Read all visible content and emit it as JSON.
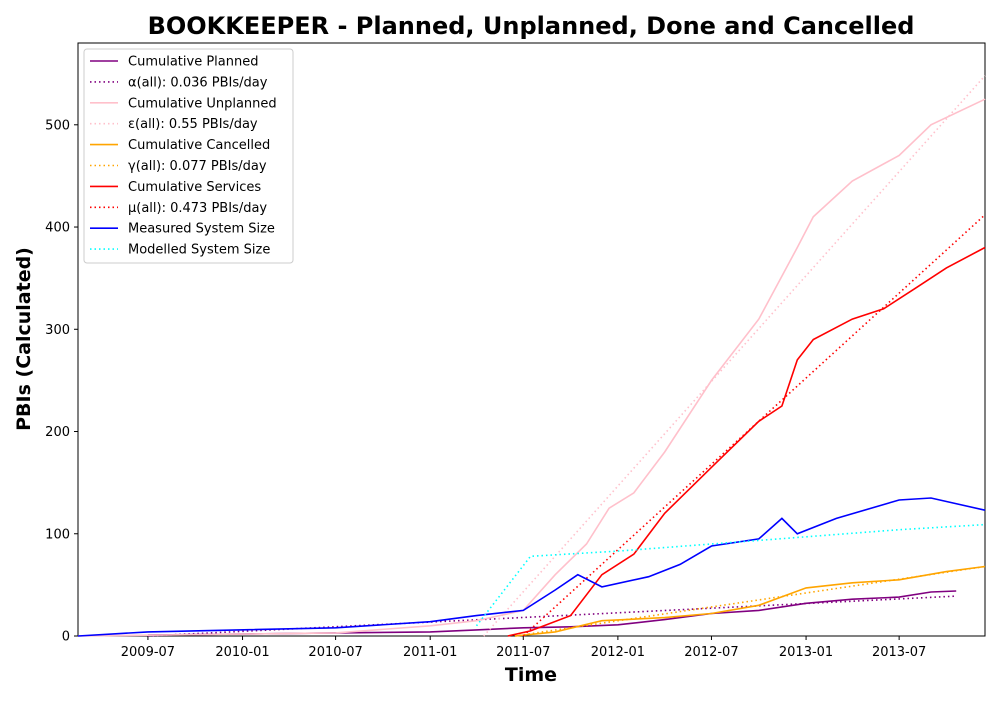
{
  "chart_data": {
    "type": "line",
    "title": "BOOKKEEPER - Planned, Unplanned, Done  and Cancelled",
    "xlabel": "Time",
    "ylabel": "PBIs (Calculated)",
    "x_range": [
      "2009-02-15",
      "2013-12-15"
    ],
    "ylim": [
      0,
      580
    ],
    "x_ticks": [
      "2009-07",
      "2010-01",
      "2010-07",
      "2011-01",
      "2011-07",
      "2012-01",
      "2012-07",
      "2013-01",
      "2013-07"
    ],
    "y_ticks": [
      0,
      100,
      200,
      300,
      400,
      500
    ],
    "grid": false,
    "legend_position": "top-left",
    "series": [
      {
        "name": "Cumulative Planned",
        "color": "#800080",
        "style": "solid",
        "points": [
          [
            "2009-07-01",
            1
          ],
          [
            "2010-01-01",
            2
          ],
          [
            "2010-07-01",
            3
          ],
          [
            "2011-01-01",
            4
          ],
          [
            "2011-04-01",
            6
          ],
          [
            "2011-07-01",
            8
          ],
          [
            "2011-10-01",
            9
          ],
          [
            "2012-01-01",
            11
          ],
          [
            "2012-04-01",
            16
          ],
          [
            "2012-07-01",
            22
          ],
          [
            "2012-10-01",
            25
          ],
          [
            "2013-01-01",
            32
          ],
          [
            "2013-04-01",
            36
          ],
          [
            "2013-07-01",
            38
          ],
          [
            "2013-09-01",
            43
          ],
          [
            "2013-10-20",
            44
          ]
        ]
      },
      {
        "name": "α(all): 0.036 PBIs/day",
        "color": "#800080",
        "style": "dotted",
        "points": [
          [
            "2009-07-01",
            0
          ],
          [
            "2013-10-20",
            39
          ]
        ]
      },
      {
        "name": "Cumulative Unplanned",
        "color": "#ffc0cb",
        "style": "solid",
        "points": [
          [
            "2009-02-15",
            0
          ],
          [
            "2010-07-01",
            3
          ],
          [
            "2011-01-01",
            10
          ],
          [
            "2011-04-01",
            15
          ],
          [
            "2011-07-01",
            25
          ],
          [
            "2011-09-01",
            60
          ],
          [
            "2011-11-01",
            90
          ],
          [
            "2011-12-15",
            125
          ],
          [
            "2012-02-01",
            140
          ],
          [
            "2012-04-01",
            180
          ],
          [
            "2012-07-01",
            250
          ],
          [
            "2012-10-01",
            310
          ],
          [
            "2012-12-15",
            380
          ],
          [
            "2013-01-15",
            410
          ],
          [
            "2013-04-01",
            445
          ],
          [
            "2013-07-01",
            470
          ],
          [
            "2013-09-01",
            500
          ],
          [
            "2013-12-15",
            525
          ]
        ]
      },
      {
        "name": "ε(all): 0.55 PBIs/day",
        "color": "#ffc0cb",
        "style": "dotted",
        "points": [
          [
            "2011-04-15",
            0
          ],
          [
            "2013-12-15",
            548
          ]
        ]
      },
      {
        "name": "Cumulative Cancelled",
        "color": "#ffa500",
        "style": "solid",
        "points": [
          [
            "2011-06-15",
            0
          ],
          [
            "2011-09-01",
            4
          ],
          [
            "2011-12-01",
            15
          ],
          [
            "2012-04-01",
            18
          ],
          [
            "2012-07-01",
            22
          ],
          [
            "2012-10-01",
            30
          ],
          [
            "2013-01-01",
            47
          ],
          [
            "2013-04-01",
            52
          ],
          [
            "2013-07-01",
            55
          ],
          [
            "2013-10-01",
            63
          ],
          [
            "2013-12-15",
            68
          ]
        ]
      },
      {
        "name": "γ(all): 0.077 PBIs/day",
        "color": "#ffa500",
        "style": "dotted",
        "points": [
          [
            "2011-06-15",
            0
          ],
          [
            "2013-12-15",
            68
          ]
        ]
      },
      {
        "name": "Cumulative Services",
        "color": "#ff0000",
        "style": "solid",
        "points": [
          [
            "2011-06-01",
            0
          ],
          [
            "2011-07-15",
            5
          ],
          [
            "2011-10-01",
            20
          ],
          [
            "2011-12-01",
            60
          ],
          [
            "2012-02-01",
            80
          ],
          [
            "2012-04-01",
            120
          ],
          [
            "2012-07-01",
            165
          ],
          [
            "2012-10-01",
            210
          ],
          [
            "2012-11-15",
            225
          ],
          [
            "2012-12-15",
            270
          ],
          [
            "2013-01-15",
            290
          ],
          [
            "2013-04-01",
            310
          ],
          [
            "2013-06-01",
            320
          ],
          [
            "2013-08-01",
            340
          ],
          [
            "2013-10-01",
            360
          ],
          [
            "2013-12-15",
            380
          ]
        ]
      },
      {
        "name": "μ(all): 0.473 PBIs/day",
        "color": "#ff0000",
        "style": "dotted",
        "points": [
          [
            "2011-07-01",
            0
          ],
          [
            "2013-12-15",
            412
          ]
        ]
      },
      {
        "name": "Measured System Size",
        "color": "#0000ff",
        "style": "solid",
        "points": [
          [
            "2009-02-15",
            0
          ],
          [
            "2009-07-01",
            4
          ],
          [
            "2010-07-01",
            8
          ],
          [
            "2011-01-01",
            14
          ],
          [
            "2011-04-01",
            20
          ],
          [
            "2011-07-01",
            25
          ],
          [
            "2011-09-01",
            45
          ],
          [
            "2011-10-15",
            60
          ],
          [
            "2011-12-01",
            48
          ],
          [
            "2012-03-01",
            58
          ],
          [
            "2012-05-01",
            70
          ],
          [
            "2012-07-01",
            88
          ],
          [
            "2012-10-01",
            95
          ],
          [
            "2012-11-15",
            115
          ],
          [
            "2012-12-15",
            100
          ],
          [
            "2013-03-01",
            115
          ],
          [
            "2013-07-01",
            133
          ],
          [
            "2013-09-01",
            135
          ],
          [
            "2013-12-15",
            123
          ]
        ]
      },
      {
        "name": "Modelled System Size",
        "color": "#00ffff",
        "style": "dotted",
        "points": [
          [
            "2011-04-01",
            10
          ],
          [
            "2011-07-15",
            78
          ],
          [
            "2012-01-01",
            83
          ],
          [
            "2012-07-01",
            90
          ],
          [
            "2013-01-01",
            97
          ],
          [
            "2013-07-01",
            104
          ],
          [
            "2013-12-15",
            109
          ]
        ]
      }
    ]
  }
}
